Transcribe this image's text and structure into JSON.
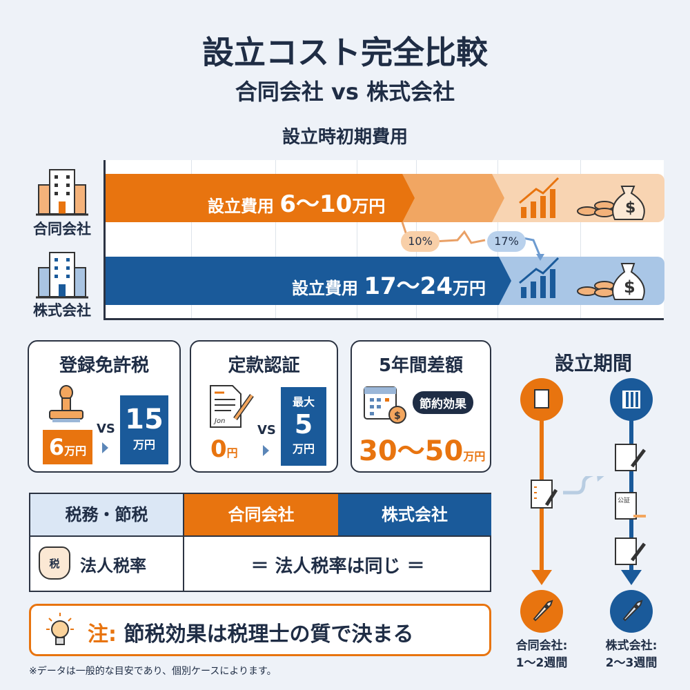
{
  "title": "設立コスト完全比較",
  "subtitle": "合同会社 vs 株式会社",
  "colors": {
    "orange": "#e8740f",
    "blue": "#1a5a9a",
    "dark": "#1f2d45",
    "background": "#eef2f8"
  },
  "initial_cost": {
    "title": "設立時初期費用",
    "rows": [
      {
        "company": "合同会社",
        "label": "設立費用",
        "value": "6〜10",
        "unit": "万円",
        "icon": "office-building-icon"
      },
      {
        "company": "株式会社",
        "label": "設立費用",
        "value": "17〜24",
        "unit": "万円",
        "icon": "office-building-icon"
      }
    ],
    "pills": [
      "10%",
      "17%"
    ]
  },
  "cards": [
    {
      "title": "登録免許税",
      "left_value": "6",
      "left_unit": "万円",
      "vs": "VS",
      "right_value": "15",
      "right_unit": "万円",
      "icon": "stamp-icon"
    },
    {
      "title": "定款認証",
      "left_value": "0",
      "left_unit": "円",
      "vs": "VS",
      "right_prefix": "最大",
      "right_value": "5",
      "right_unit": "万円",
      "icon": "signed-document-icon"
    },
    {
      "title": "5年間差額",
      "badge": "節約効果",
      "value": "30〜50",
      "unit": "万円",
      "icon": "calendar-coin-icon"
    }
  ],
  "tax_table": {
    "headers": [
      "税務・節税",
      "合同会社",
      "株式会社"
    ],
    "row_label": "法人税率",
    "row_icon_text": "税",
    "row_value": "＝ 法人税率は同じ ＝"
  },
  "note": {
    "prefix": "注:",
    "text": "節税効果は税理士の質で決まる"
  },
  "footnote": "※データは一般的な目安であり、個別ケースによります。",
  "period": {
    "title": "設立期間",
    "llc": {
      "label": "合同会社:",
      "duration": "1〜2週間"
    },
    "kk": {
      "label": "株式会社:",
      "duration": "2〜3週間"
    },
    "kk_step_text": "公証"
  }
}
